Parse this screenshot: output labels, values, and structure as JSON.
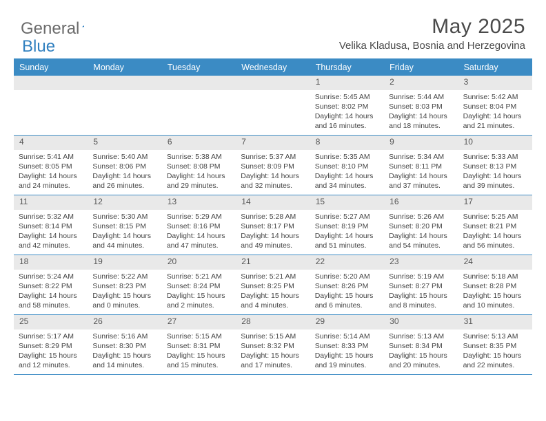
{
  "brand": {
    "part1": "General",
    "part2": "Blue"
  },
  "title": "May 2025",
  "location": "Velika Kladusa, Bosnia and Herzegovina",
  "colors": {
    "header_bg": "#3b8bc4",
    "daynum_bg": "#e9e9e9",
    "border": "#3b8bc4",
    "text": "#3a3a3a",
    "logo_gray": "#6b6b6b",
    "logo_blue": "#2f7fbf"
  },
  "dow": [
    "Sunday",
    "Monday",
    "Tuesday",
    "Wednesday",
    "Thursday",
    "Friday",
    "Saturday"
  ],
  "weeks": [
    [
      {
        "n": "",
        "sr": "",
        "ss": "",
        "dl": ""
      },
      {
        "n": "",
        "sr": "",
        "ss": "",
        "dl": ""
      },
      {
        "n": "",
        "sr": "",
        "ss": "",
        "dl": ""
      },
      {
        "n": "",
        "sr": "",
        "ss": "",
        "dl": ""
      },
      {
        "n": "1",
        "sr": "5:45 AM",
        "ss": "8:02 PM",
        "dl": "14 hours and 16 minutes."
      },
      {
        "n": "2",
        "sr": "5:44 AM",
        "ss": "8:03 PM",
        "dl": "14 hours and 18 minutes."
      },
      {
        "n": "3",
        "sr": "5:42 AM",
        "ss": "8:04 PM",
        "dl": "14 hours and 21 minutes."
      }
    ],
    [
      {
        "n": "4",
        "sr": "5:41 AM",
        "ss": "8:05 PM",
        "dl": "14 hours and 24 minutes."
      },
      {
        "n": "5",
        "sr": "5:40 AM",
        "ss": "8:06 PM",
        "dl": "14 hours and 26 minutes."
      },
      {
        "n": "6",
        "sr": "5:38 AM",
        "ss": "8:08 PM",
        "dl": "14 hours and 29 minutes."
      },
      {
        "n": "7",
        "sr": "5:37 AM",
        "ss": "8:09 PM",
        "dl": "14 hours and 32 minutes."
      },
      {
        "n": "8",
        "sr": "5:35 AM",
        "ss": "8:10 PM",
        "dl": "14 hours and 34 minutes."
      },
      {
        "n": "9",
        "sr": "5:34 AM",
        "ss": "8:11 PM",
        "dl": "14 hours and 37 minutes."
      },
      {
        "n": "10",
        "sr": "5:33 AM",
        "ss": "8:13 PM",
        "dl": "14 hours and 39 minutes."
      }
    ],
    [
      {
        "n": "11",
        "sr": "5:32 AM",
        "ss": "8:14 PM",
        "dl": "14 hours and 42 minutes."
      },
      {
        "n": "12",
        "sr": "5:30 AM",
        "ss": "8:15 PM",
        "dl": "14 hours and 44 minutes."
      },
      {
        "n": "13",
        "sr": "5:29 AM",
        "ss": "8:16 PM",
        "dl": "14 hours and 47 minutes."
      },
      {
        "n": "14",
        "sr": "5:28 AM",
        "ss": "8:17 PM",
        "dl": "14 hours and 49 minutes."
      },
      {
        "n": "15",
        "sr": "5:27 AM",
        "ss": "8:19 PM",
        "dl": "14 hours and 51 minutes."
      },
      {
        "n": "16",
        "sr": "5:26 AM",
        "ss": "8:20 PM",
        "dl": "14 hours and 54 minutes."
      },
      {
        "n": "17",
        "sr": "5:25 AM",
        "ss": "8:21 PM",
        "dl": "14 hours and 56 minutes."
      }
    ],
    [
      {
        "n": "18",
        "sr": "5:24 AM",
        "ss": "8:22 PM",
        "dl": "14 hours and 58 minutes."
      },
      {
        "n": "19",
        "sr": "5:22 AM",
        "ss": "8:23 PM",
        "dl": "15 hours and 0 minutes."
      },
      {
        "n": "20",
        "sr": "5:21 AM",
        "ss": "8:24 PM",
        "dl": "15 hours and 2 minutes."
      },
      {
        "n": "21",
        "sr": "5:21 AM",
        "ss": "8:25 PM",
        "dl": "15 hours and 4 minutes."
      },
      {
        "n": "22",
        "sr": "5:20 AM",
        "ss": "8:26 PM",
        "dl": "15 hours and 6 minutes."
      },
      {
        "n": "23",
        "sr": "5:19 AM",
        "ss": "8:27 PM",
        "dl": "15 hours and 8 minutes."
      },
      {
        "n": "24",
        "sr": "5:18 AM",
        "ss": "8:28 PM",
        "dl": "15 hours and 10 minutes."
      }
    ],
    [
      {
        "n": "25",
        "sr": "5:17 AM",
        "ss": "8:29 PM",
        "dl": "15 hours and 12 minutes."
      },
      {
        "n": "26",
        "sr": "5:16 AM",
        "ss": "8:30 PM",
        "dl": "15 hours and 14 minutes."
      },
      {
        "n": "27",
        "sr": "5:15 AM",
        "ss": "8:31 PM",
        "dl": "15 hours and 15 minutes."
      },
      {
        "n": "28",
        "sr": "5:15 AM",
        "ss": "8:32 PM",
        "dl": "15 hours and 17 minutes."
      },
      {
        "n": "29",
        "sr": "5:14 AM",
        "ss": "8:33 PM",
        "dl": "15 hours and 19 minutes."
      },
      {
        "n": "30",
        "sr": "5:13 AM",
        "ss": "8:34 PM",
        "dl": "15 hours and 20 minutes."
      },
      {
        "n": "31",
        "sr": "5:13 AM",
        "ss": "8:35 PM",
        "dl": "15 hours and 22 minutes."
      }
    ]
  ],
  "labels": {
    "sunrise": "Sunrise: ",
    "sunset": "Sunset: ",
    "daylight": "Daylight: "
  }
}
